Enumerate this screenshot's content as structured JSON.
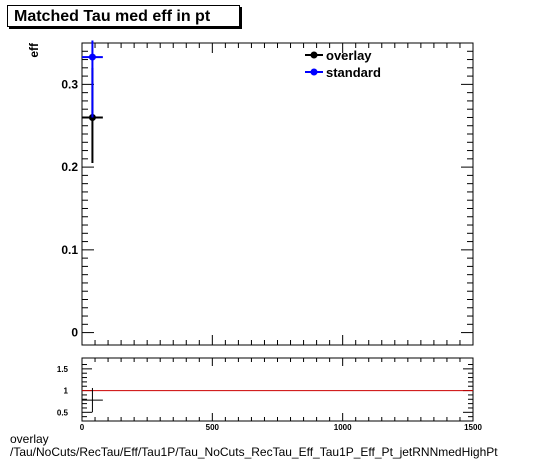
{
  "title": "Matched Tau med eff in pt",
  "footer": {
    "line1": "overlay",
    "line2": "/Tau/NoCuts/RecTau/Eff/Tau1P/Tau_NoCuts_RecTau_Eff_Tau1P_Eff_Pt_jetRNNmedHighPt"
  },
  "colors": {
    "overlay": "#000000",
    "standard": "#0000ff",
    "ratio_line": "#cc0000"
  },
  "chart_data": [
    {
      "type": "scatter",
      "title": "Matched Tau med eff in pt",
      "ylabel": "eff",
      "xlim": [
        0,
        1500
      ],
      "ylim": [
        -0.015,
        0.35
      ],
      "yticks": [
        0,
        0.1,
        0.2,
        0.3
      ],
      "ytick_labels": [
        "0",
        "0.1",
        "0.2",
        "0.3"
      ],
      "legend": {
        "placement": "top-right",
        "entries": [
          "overlay",
          "standard"
        ]
      },
      "series": [
        {
          "name": "overlay",
          "x": [
            40
          ],
          "xerr": [
            40
          ],
          "y": [
            0.26
          ],
          "yerr_low": [
            0.055
          ],
          "yerr_high": [
            0.06
          ]
        },
        {
          "name": "standard",
          "x": [
            40
          ],
          "xerr": [
            40
          ],
          "y": [
            0.333
          ],
          "yerr_low": [
            0.073
          ],
          "yerr_high": [
            0.02
          ]
        }
      ]
    },
    {
      "type": "scatter",
      "title": "",
      "xlim": [
        0,
        1500
      ],
      "ylim": [
        0.3,
        1.75
      ],
      "xticks": [
        0,
        500,
        1000,
        1500
      ],
      "xtick_labels": [
        "0",
        "500",
        "1000",
        "1500"
      ],
      "yticks": [
        0.5,
        1,
        1.5
      ],
      "ytick_labels": [
        "0.5",
        "1",
        "1.5"
      ],
      "reference_line": 1,
      "series": [
        {
          "x": [
            40
          ],
          "xerr": [
            40
          ],
          "y": [
            0.78
          ],
          "yerr_low": [
            0.28
          ],
          "yerr_high": [
            0.28
          ]
        }
      ]
    }
  ]
}
